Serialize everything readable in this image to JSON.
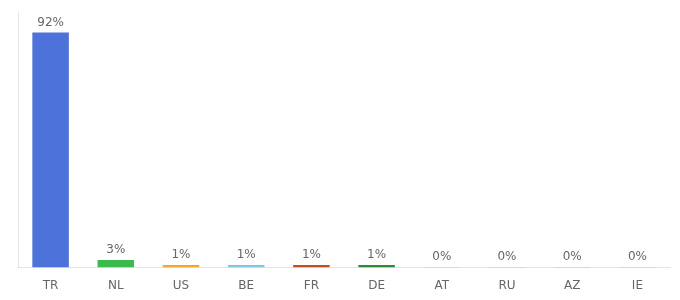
{
  "chart_data": {
    "type": "bar",
    "categories": [
      "TR",
      "NL",
      "US",
      "BE",
      "FR",
      "DE",
      "AT",
      "RU",
      "AZ",
      "IE"
    ],
    "values": [
      92,
      3,
      1,
      1,
      1,
      1,
      0.15,
      0.15,
      0.15,
      0.15
    ],
    "value_labels": [
      "92%",
      "3%",
      "1%",
      "1%",
      "1%",
      "1%",
      "0%",
      "0%",
      "0%",
      "0%"
    ],
    "colors": [
      "#4d72d9",
      "#3dba4e",
      "#f5a623",
      "#7ec8e3",
      "#c0521f",
      "#2e8b3a",
      "#4d72d9",
      "#4d72d9",
      "#4d72d9",
      "#4d72d9"
    ],
    "ylim": [
      0,
      100
    ],
    "data_labels": true,
    "tick_labels": "x",
    "grid": false
  }
}
